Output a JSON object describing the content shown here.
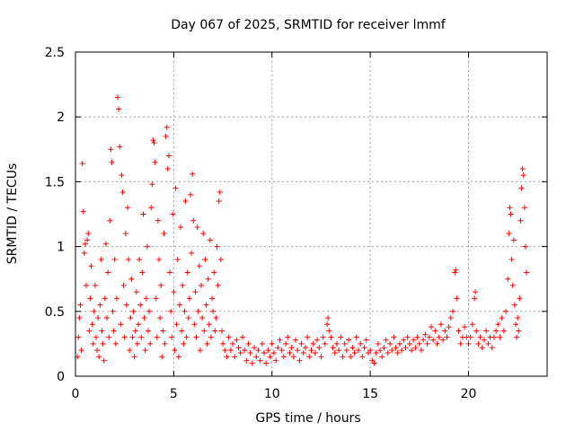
{
  "chart_data": {
    "type": "scatter",
    "title": "Day 067 of 2025, SRMTID for receiver lmmf",
    "xlabel": "GPS time / hours",
    "ylabel": "SRMTID / TECUs",
    "xlim": [
      0,
      24
    ],
    "ylim": [
      0,
      2.5
    ],
    "xticks": [
      0,
      5,
      10,
      15,
      20
    ],
    "xtick_labels": [
      "0",
      "5",
      "10",
      "15",
      "20"
    ],
    "yticks": [
      0,
      0.5,
      1,
      1.5,
      2,
      2.5
    ],
    "ytick_labels": [
      "0",
      "0.5",
      "1",
      "1.5",
      "2",
      "2.5"
    ],
    "grid": true,
    "marker": "+",
    "color": "#ff0000",
    "series": [
      {
        "name": "SRMTID",
        "points": [
          [
            0.1,
            0.15
          ],
          [
            0.15,
            0.3
          ],
          [
            0.2,
            0.45
          ],
          [
            0.25,
            0.55
          ],
          [
            0.3,
            0.2
          ],
          [
            0.35,
            1.64
          ],
          [
            0.4,
            1.27
          ],
          [
            0.45,
            0.95
          ],
          [
            0.5,
            1.02
          ],
          [
            0.55,
            0.7
          ],
          [
            0.6,
            1.05
          ],
          [
            0.65,
            1.1
          ],
          [
            0.7,
            0.35
          ],
          [
            0.75,
            0.6
          ],
          [
            0.8,
            0.85
          ],
          [
            0.85,
            0.4
          ],
          [
            0.9,
            0.25
          ],
          [
            0.95,
            0.5
          ],
          [
            1.0,
            0.7
          ],
          [
            1.05,
            0.3
          ],
          [
            1.1,
            0.2
          ],
          [
            1.15,
            0.45
          ],
          [
            1.2,
            0.15
          ],
          [
            1.25,
            0.55
          ],
          [
            1.3,
            0.9
          ],
          [
            1.35,
            0.35
          ],
          [
            1.4,
            0.25
          ],
          [
            1.45,
            0.12
          ],
          [
            1.5,
            0.6
          ],
          [
            1.55,
            1.02
          ],
          [
            1.6,
            0.45
          ],
          [
            1.65,
            0.8
          ],
          [
            1.7,
            0.3
          ],
          [
            1.75,
            1.2
          ],
          [
            1.8,
            1.75
          ],
          [
            1.85,
            1.65
          ],
          [
            1.9,
            0.5
          ],
          [
            1.95,
            0.35
          ],
          [
            2.0,
            0.9
          ],
          [
            2.05,
            0.25
          ],
          [
            2.1,
            0.6
          ],
          [
            2.15,
            2.15
          ],
          [
            2.2,
            2.06
          ],
          [
            2.25,
            1.77
          ],
          [
            2.3,
            0.4
          ],
          [
            2.35,
            1.55
          ],
          [
            2.4,
            1.42
          ],
          [
            2.45,
            0.7
          ],
          [
            2.5,
            0.3
          ],
          [
            2.55,
            1.1
          ],
          [
            2.6,
            0.55
          ],
          [
            2.65,
            1.3
          ],
          [
            2.7,
            0.9
          ],
          [
            2.75,
            0.2
          ],
          [
            2.8,
            0.45
          ],
          [
            2.85,
            0.75
          ],
          [
            2.9,
            0.3
          ],
          [
            2.95,
            0.5
          ],
          [
            3.0,
            0.15
          ],
          [
            3.05,
            0.35
          ],
          [
            3.1,
            0.65
          ],
          [
            3.15,
            0.25
          ],
          [
            3.2,
            0.4
          ],
          [
            3.25,
            0.9
          ],
          [
            3.3,
            0.55
          ],
          [
            3.35,
            0.3
          ],
          [
            3.4,
            0.8
          ],
          [
            3.45,
            1.25
          ],
          [
            3.5,
            0.45
          ],
          [
            3.55,
            0.2
          ],
          [
            3.6,
            0.6
          ],
          [
            3.65,
            1.0
          ],
          [
            3.7,
            0.35
          ],
          [
            3.75,
            0.5
          ],
          [
            3.8,
            0.25
          ],
          [
            3.85,
            1.3
          ],
          [
            3.9,
            1.48
          ],
          [
            3.95,
            1.82
          ],
          [
            4.0,
            1.8
          ],
          [
            4.05,
            1.65
          ],
          [
            4.1,
            0.6
          ],
          [
            4.15,
            0.3
          ],
          [
            4.2,
            1.2
          ],
          [
            4.25,
            0.9
          ],
          [
            4.3,
            0.45
          ],
          [
            4.35,
            0.7
          ],
          [
            4.4,
            0.15
          ],
          [
            4.45,
            0.35
          ],
          [
            4.5,
            1.1
          ],
          [
            4.55,
            0.25
          ],
          [
            4.6,
            1.85
          ],
          [
            4.65,
            1.92
          ],
          [
            4.7,
            1.6
          ],
          [
            4.75,
            1.7
          ],
          [
            4.8,
            0.8
          ],
          [
            4.85,
            0.5
          ],
          [
            4.9,
            0.3
          ],
          [
            4.95,
            1.25
          ],
          [
            5.0,
            0.65
          ],
          [
            5.05,
            0.2
          ],
          [
            5.1,
            1.45
          ],
          [
            5.15,
            0.4
          ],
          [
            5.2,
            0.9
          ],
          [
            5.25,
            0.15
          ],
          [
            5.3,
            0.55
          ],
          [
            5.35,
            1.15
          ],
          [
            5.4,
            0.35
          ],
          [
            5.45,
            0.7
          ],
          [
            5.5,
            0.25
          ],
          [
            5.55,
            0.5
          ],
          [
            5.6,
            1.35
          ],
          [
            5.65,
            0.3
          ],
          [
            5.7,
            0.8
          ],
          [
            5.75,
            0.45
          ],
          [
            5.8,
            0.6
          ],
          [
            5.85,
            1.4
          ],
          [
            5.9,
            0.95
          ],
          [
            5.95,
            1.56
          ],
          [
            6.0,
            1.2
          ],
          [
            6.05,
            0.4
          ],
          [
            6.1,
            0.65
          ],
          [
            6.15,
            0.3
          ],
          [
            6.2,
            1.15
          ],
          [
            6.25,
            0.5
          ],
          [
            6.3,
            0.85
          ],
          [
            6.35,
            0.2
          ],
          [
            6.4,
            0.7
          ],
          [
            6.45,
            0.45
          ],
          [
            6.5,
            1.1
          ],
          [
            6.55,
            0.35
          ],
          [
            6.6,
            0.9
          ],
          [
            6.65,
            0.55
          ],
          [
            6.7,
            0.25
          ],
          [
            6.75,
            0.75
          ],
          [
            6.8,
            0.4
          ],
          [
            6.85,
            1.05
          ],
          [
            6.9,
            0.3
          ],
          [
            6.95,
            0.6
          ],
          [
            7.0,
            0.5
          ],
          [
            7.05,
            0.8
          ],
          [
            7.1,
            0.35
          ],
          [
            7.15,
            0.45
          ],
          [
            7.2,
            1.0
          ],
          [
            7.25,
            0.7
          ],
          [
            7.3,
            1.35
          ],
          [
            7.35,
            1.42
          ],
          [
            7.4,
            0.9
          ],
          [
            7.45,
            0.35
          ],
          [
            7.5,
            0.25
          ],
          [
            7.6,
            0.2
          ],
          [
            7.7,
            0.15
          ],
          [
            7.8,
            0.3
          ],
          [
            7.9,
            0.2
          ],
          [
            8.0,
            0.25
          ],
          [
            8.1,
            0.15
          ],
          [
            8.2,
            0.28
          ],
          [
            8.3,
            0.22
          ],
          [
            8.4,
            0.18
          ],
          [
            8.5,
            0.3
          ],
          [
            8.6,
            0.2
          ],
          [
            8.7,
            0.12
          ],
          [
            8.8,
            0.25
          ],
          [
            8.9,
            0.18
          ],
          [
            9.0,
            0.1
          ],
          [
            9.1,
            0.22
          ],
          [
            9.2,
            0.15
          ],
          [
            9.3,
            0.2
          ],
          [
            9.4,
            0.12
          ],
          [
            9.5,
            0.25
          ],
          [
            9.6,
            0.18
          ],
          [
            9.7,
            0.1
          ],
          [
            9.8,
            0.2
          ],
          [
            9.9,
            0.15
          ],
          [
            10.0,
            0.25
          ],
          [
            10.1,
            0.18
          ],
          [
            10.2,
            0.12
          ],
          [
            10.3,
            0.22
          ],
          [
            10.4,
            0.28
          ],
          [
            10.5,
            0.2
          ],
          [
            10.6,
            0.15
          ],
          [
            10.7,
            0.25
          ],
          [
            10.8,
            0.3
          ],
          [
            10.9,
            0.18
          ],
          [
            11.0,
            0.22
          ],
          [
            11.1,
            0.15
          ],
          [
            11.2,
            0.28
          ],
          [
            11.3,
            0.2
          ],
          [
            11.4,
            0.12
          ],
          [
            11.5,
            0.25
          ],
          [
            11.6,
            0.18
          ],
          [
            11.7,
            0.22
          ],
          [
            11.8,
            0.3
          ],
          [
            11.9,
            0.15
          ],
          [
            12.0,
            0.2
          ],
          [
            12.1,
            0.25
          ],
          [
            12.2,
            0.18
          ],
          [
            12.3,
            0.28
          ],
          [
            12.4,
            0.22
          ],
          [
            12.5,
            0.15
          ],
          [
            12.6,
            0.3
          ],
          [
            12.7,
            0.25
          ],
          [
            12.8,
            0.4
          ],
          [
            12.85,
            0.45
          ],
          [
            12.9,
            0.35
          ],
          [
            13.0,
            0.3
          ],
          [
            13.1,
            0.22
          ],
          [
            13.2,
            0.18
          ],
          [
            13.3,
            0.25
          ],
          [
            13.4,
            0.2
          ],
          [
            13.5,
            0.3
          ],
          [
            13.6,
            0.15
          ],
          [
            13.7,
            0.25
          ],
          [
            13.8,
            0.2
          ],
          [
            13.9,
            0.28
          ],
          [
            14.0,
            0.15
          ],
          [
            14.1,
            0.22
          ],
          [
            14.2,
            0.18
          ],
          [
            14.3,
            0.3
          ],
          [
            14.4,
            0.2
          ],
          [
            14.5,
            0.25
          ],
          [
            14.6,
            0.15
          ],
          [
            14.7,
            0.22
          ],
          [
            14.8,
            0.28
          ],
          [
            14.9,
            0.18
          ],
          [
            15.0,
            0.2
          ],
          [
            15.1,
            0.12
          ],
          [
            15.2,
            0.1
          ],
          [
            15.3,
            0.18
          ],
          [
            15.4,
            0.25
          ],
          [
            15.5,
            0.2
          ],
          [
            15.6,
            0.15
          ],
          [
            15.7,
            0.22
          ],
          [
            15.8,
            0.28
          ],
          [
            15.9,
            0.18
          ],
          [
            16.0,
            0.25
          ],
          [
            16.1,
            0.2
          ],
          [
            16.2,
            0.3
          ],
          [
            16.3,
            0.22
          ],
          [
            16.4,
            0.18
          ],
          [
            16.5,
            0.25
          ],
          [
            16.6,
            0.2
          ],
          [
            16.7,
            0.28
          ],
          [
            16.8,
            0.22
          ],
          [
            16.9,
            0.3
          ],
          [
            17.0,
            0.25
          ],
          [
            17.1,
            0.2
          ],
          [
            17.2,
            0.28
          ],
          [
            17.3,
            0.22
          ],
          [
            17.4,
            0.3
          ],
          [
            17.5,
            0.25
          ],
          [
            17.6,
            0.2
          ],
          [
            17.7,
            0.28
          ],
          [
            17.8,
            0.32
          ],
          [
            17.9,
            0.25
          ],
          [
            18.0,
            0.3
          ],
          [
            18.1,
            0.38
          ],
          [
            18.2,
            0.28
          ],
          [
            18.3,
            0.35
          ],
          [
            18.4,
            0.25
          ],
          [
            18.5,
            0.3
          ],
          [
            18.6,
            0.4
          ],
          [
            18.7,
            0.28
          ],
          [
            18.8,
            0.35
          ],
          [
            18.9,
            0.3
          ],
          [
            19.0,
            0.38
          ],
          [
            19.1,
            0.45
          ],
          [
            19.2,
            0.5
          ],
          [
            19.3,
            0.8
          ],
          [
            19.35,
            0.82
          ],
          [
            19.4,
            0.6
          ],
          [
            19.5,
            0.35
          ],
          [
            19.6,
            0.25
          ],
          [
            19.7,
            0.3
          ],
          [
            19.8,
            0.38
          ],
          [
            19.9,
            0.3
          ],
          [
            20.0,
            0.25
          ],
          [
            20.1,
            0.3
          ],
          [
            20.2,
            0.4
          ],
          [
            20.3,
            0.6
          ],
          [
            20.35,
            0.65
          ],
          [
            20.4,
            0.35
          ],
          [
            20.5,
            0.25
          ],
          [
            20.6,
            0.3
          ],
          [
            20.7,
            0.22
          ],
          [
            20.8,
            0.28
          ],
          [
            20.9,
            0.35
          ],
          [
            21.0,
            0.25
          ],
          [
            21.1,
            0.3
          ],
          [
            21.2,
            0.22
          ],
          [
            21.3,
            0.3
          ],
          [
            21.4,
            0.35
          ],
          [
            21.5,
            0.4
          ],
          [
            21.6,
            0.3
          ],
          [
            21.7,
            0.45
          ],
          [
            21.8,
            0.35
          ],
          [
            21.9,
            0.5
          ],
          [
            22.0,
            0.75
          ],
          [
            22.05,
            1.1
          ],
          [
            22.1,
            1.3
          ],
          [
            22.15,
            1.25
          ],
          [
            22.2,
            0.9
          ],
          [
            22.25,
            0.7
          ],
          [
            22.3,
            1.05
          ],
          [
            22.35,
            0.55
          ],
          [
            22.4,
            0.4
          ],
          [
            22.45,
            0.3
          ],
          [
            22.5,
            0.45
          ],
          [
            22.55,
            0.35
          ],
          [
            22.6,
            0.6
          ],
          [
            22.65,
            1.2
          ],
          [
            22.7,
            1.45
          ],
          [
            22.75,
            1.6
          ],
          [
            22.8,
            1.55
          ],
          [
            22.85,
            1.3
          ],
          [
            22.9,
            1.0
          ],
          [
            22.95,
            0.8
          ]
        ]
      }
    ]
  }
}
